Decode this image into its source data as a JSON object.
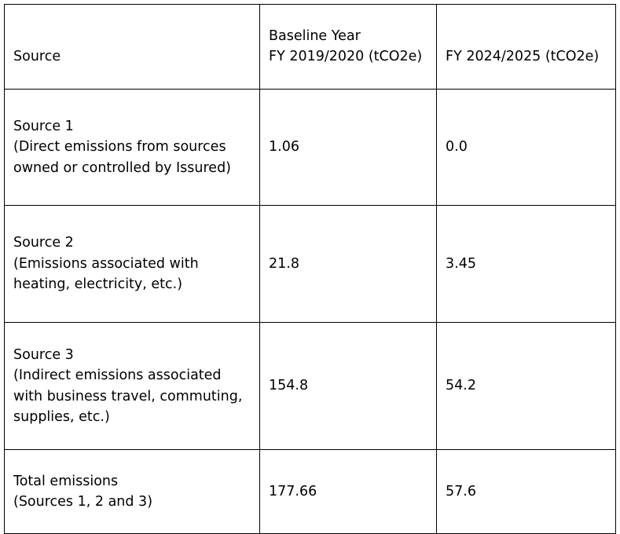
{
  "table": {
    "headers": [
      "Source",
      "Baseline Year\nFY 2019/2020 (tCO2e)",
      "FY 2024/2025 (tCO2e)"
    ],
    "rows": [
      {
        "source": "Source 1\n(Direct emissions from sources owned or controlled by Issured)",
        "baseline": "1.06",
        "current": "0.0"
      },
      {
        "source": "Source 2\n(Emissions associated with heating, electricity, etc.)",
        "baseline": "21.8",
        "current": "3.45"
      },
      {
        "source": "Source 3\n(Indirect emissions associated with business travel, commuting, supplies, etc.)",
        "baseline": "154.8",
        "current": "54.2"
      },
      {
        "source": "Total emissions\n(Sources 1, 2 and 3)",
        "baseline": "177.66",
        "current": "57.6"
      }
    ]
  }
}
